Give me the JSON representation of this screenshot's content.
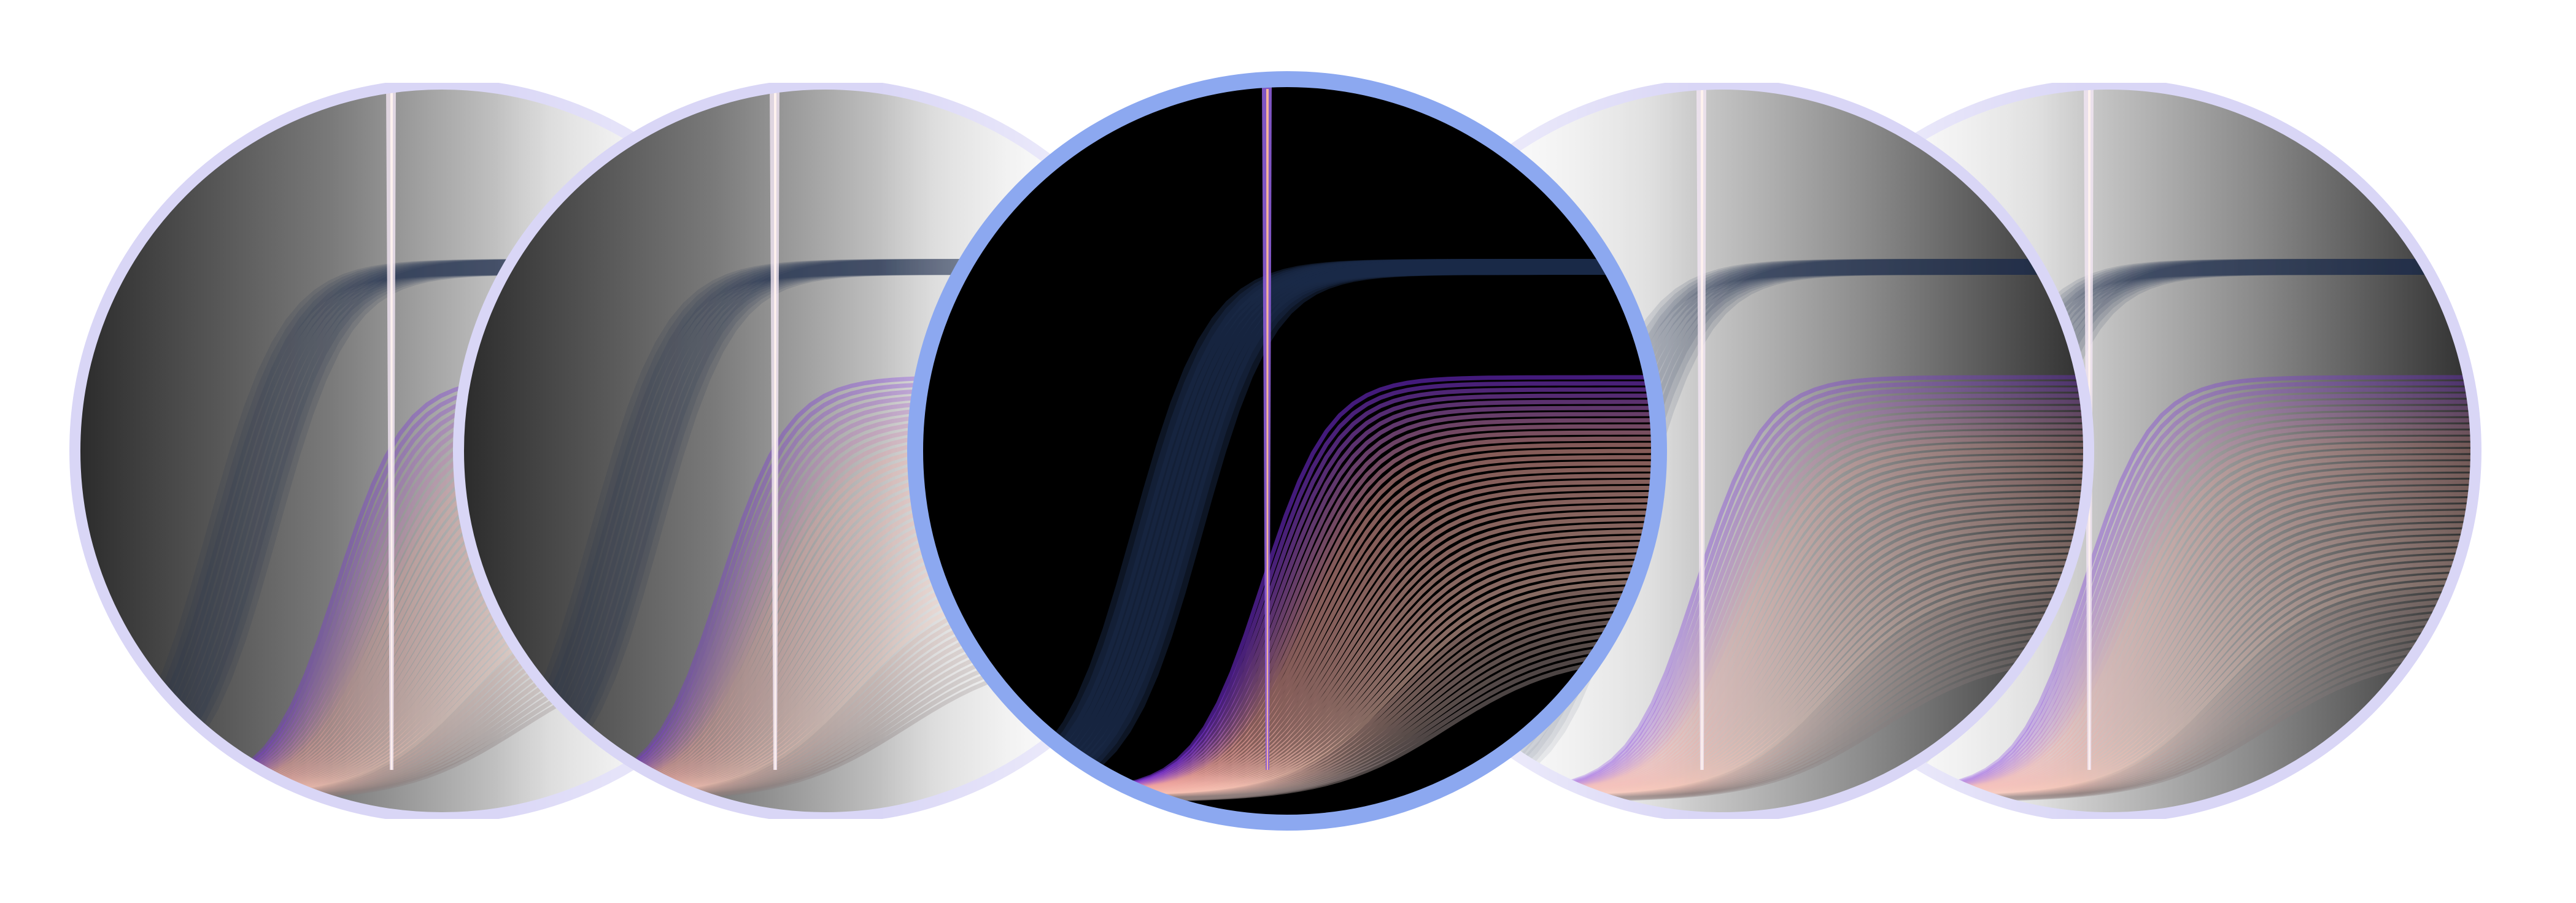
{
  "carousel": {
    "active_index": 2,
    "item_count": 5,
    "colors": {
      "ring_active": "#8ca8f0",
      "ring_inactive": "#d9d6f6",
      "background": "#ffffff",
      "inner_dark": "#000000",
      "curve_pink": "#f2a6a0",
      "curve_violet": "#7a30e0",
      "curve_navy": "#1a2a48",
      "curve_gray": "#8a7c7a",
      "spike": "#8d5ed8"
    },
    "items": [
      {
        "name": "carousel-item-1",
        "icon": "curve-bundle-thumbnail",
        "faded_side": "right"
      },
      {
        "name": "carousel-item-2",
        "icon": "curve-bundle-thumbnail",
        "faded_side": "right"
      },
      {
        "name": "carousel-item-3",
        "icon": "curve-bundle-thumbnail",
        "faded_side": "none"
      },
      {
        "name": "carousel-item-4",
        "icon": "curve-bundle-thumbnail",
        "faded_side": "left"
      },
      {
        "name": "carousel-item-5",
        "icon": "curve-bundle-thumbnail",
        "faded_side": "left"
      }
    ]
  }
}
